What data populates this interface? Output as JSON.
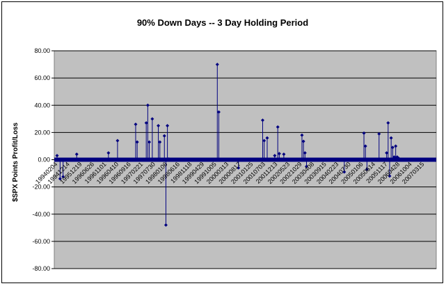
{
  "chart_data": {
    "type": "scatter",
    "title": "90% Down Days -- 3 Day Holding Period",
    "xlabel": "",
    "ylabel": "$SPX Points Profit/Loss",
    "ylim": [
      -80,
      80
    ],
    "yticks": [
      "-80.00",
      "-60.00",
      "-40.00",
      "-20.00",
      "0.00",
      "20.00",
      "40.00",
      "60.00",
      "80.00"
    ],
    "ytick_values": [
      -80,
      -60,
      -40,
      -20,
      0,
      20,
      40,
      60,
      80
    ],
    "grid": true,
    "legend": "none",
    "plot_background": "#c0c0c0",
    "marker_color": "#00007f",
    "xtick_labels": [
      "19940204",
      "19941214",
      "19951219",
      "19960626",
      "19961101",
      "19960410",
      "19960916",
      "19970221",
      "19970730",
      "19980106",
      "19980616",
      "19981118",
      "19990429",
      "19991005",
      "20000313",
      "20000817",
      "20010125",
      "20010703",
      "20011213",
      "20020523",
      "20021029",
      "20030408",
      "20030915",
      "20040223",
      "20040730",
      "20050106",
      "20050614",
      "20051117",
      "20060428",
      "20061004",
      "20070315"
    ],
    "n_events": 250,
    "events": [
      {
        "i": 0,
        "y": 3.0
      },
      {
        "i": 2,
        "y": -14.0
      },
      {
        "i": 4,
        "y": -12.5
      },
      {
        "i": 13,
        "y": 4.0
      },
      {
        "i": 34,
        "y": 5.0
      },
      {
        "i": 40,
        "y": 14.0
      },
      {
        "i": 52,
        "y": 26.0
      },
      {
        "i": 53,
        "y": 13.0
      },
      {
        "i": 59,
        "y": 27.0
      },
      {
        "i": 60,
        "y": 40.0
      },
      {
        "i": 61,
        "y": 13.0
      },
      {
        "i": 63,
        "y": 30.0
      },
      {
        "i": 67,
        "y": 25.0
      },
      {
        "i": 68,
        "y": 13.0
      },
      {
        "i": 71,
        "y": 17.5
      },
      {
        "i": 72,
        "y": -48.0
      },
      {
        "i": 73,
        "y": 25.0
      },
      {
        "i": 74,
        "y": 0.5
      },
      {
        "i": 106,
        "y": 70.0
      },
      {
        "i": 107,
        "y": 35.0
      },
      {
        "i": 120,
        "y": -6.0
      },
      {
        "i": 136,
        "y": 29.0
      },
      {
        "i": 137,
        "y": 14.0
      },
      {
        "i": 139,
        "y": 16.0
      },
      {
        "i": 144,
        "y": 3.0
      },
      {
        "i": 146,
        "y": 24.0
      },
      {
        "i": 147,
        "y": 4.5
      },
      {
        "i": 150,
        "y": 4.0
      },
      {
        "i": 162,
        "y": 18.0
      },
      {
        "i": 163,
        "y": 13.5
      },
      {
        "i": 164,
        "y": 5.0
      },
      {
        "i": 165,
        "y": -5.0
      },
      {
        "i": 190,
        "y": -9.0
      },
      {
        "i": 203,
        "y": 19.5
      },
      {
        "i": 204,
        "y": 10.0
      },
      {
        "i": 205,
        "y": -7.0
      },
      {
        "i": 213,
        "y": 19.0
      },
      {
        "i": 218,
        "y": 5.0
      },
      {
        "i": 219,
        "y": 27.0
      },
      {
        "i": 220,
        "y": -12.0
      },
      {
        "i": 221,
        "y": 16.0
      },
      {
        "i": 222,
        "y": 9.0
      },
      {
        "i": 223,
        "y": 2.0
      },
      {
        "i": 224,
        "y": 10.0
      },
      {
        "i": 225,
        "y": 2.0
      },
      {
        "i": 226,
        "y": 1.0
      }
    ]
  }
}
